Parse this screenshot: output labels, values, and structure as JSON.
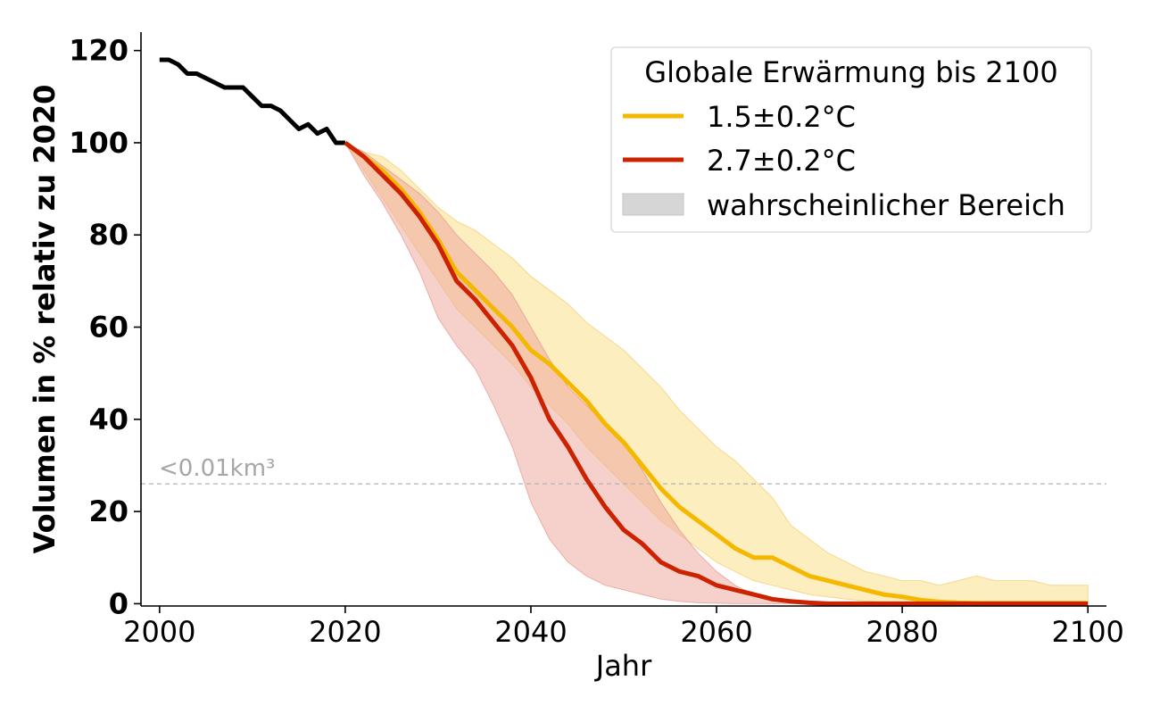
{
  "chart_data": {
    "type": "line",
    "xlabel": "Jahr",
    "ylabel": "Volumen in % relativ zu 2020",
    "xlim": [
      1998,
      2102
    ],
    "ylim": [
      -0.5,
      124
    ],
    "x_ticks": [
      2000,
      2020,
      2040,
      2060,
      2080,
      2100
    ],
    "y_ticks": [
      0,
      20,
      40,
      60,
      80,
      100,
      120
    ],
    "grid": false,
    "legend": {
      "title": "Globale Erwärmung bis 2100",
      "position": "top-right",
      "entries": [
        "1.5±0.2°C",
        "2.7±0.2°C",
        "wahrscheinlicher Bereich"
      ]
    },
    "colors": {
      "historical": "#000000",
      "s15": "#f5b800",
      "s15_band": "#fdeebf",
      "s27": "#cc2200",
      "s27_band": "#eeaaa0",
      "band_legend": "#d6d6d6",
      "threshold": "#b3b3b3"
    },
    "threshold": {
      "value": 26,
      "label": "<0.01km³"
    },
    "historical": {
      "x": [
        2000,
        2001,
        2002,
        2003,
        2004,
        2005,
        2006,
        2007,
        2008,
        2009,
        2010,
        2011,
        2012,
        2013,
        2014,
        2015,
        2016,
        2017,
        2018,
        2019,
        2020
      ],
      "y": [
        118,
        118,
        117,
        115,
        115,
        114,
        113,
        112,
        112,
        112,
        110,
        108,
        108,
        107,
        105,
        103,
        104,
        102,
        103,
        100,
        100
      ]
    },
    "series": [
      {
        "name": "1.5±0.2°C",
        "x": [
          2020,
          2022,
          2024,
          2026,
          2028,
          2030,
          2032,
          2034,
          2036,
          2038,
          2040,
          2042,
          2044,
          2046,
          2048,
          2050,
          2052,
          2054,
          2056,
          2058,
          2060,
          2062,
          2064,
          2066,
          2068,
          2070,
          2072,
          2074,
          2076,
          2078,
          2080,
          2082,
          2084,
          2086,
          2088,
          2090,
          2092,
          2094,
          2096,
          2098,
          2100
        ],
        "y": [
          100,
          97,
          94,
          90,
          85,
          79,
          72,
          68,
          64,
          60,
          55,
          52,
          48,
          44,
          39,
          35,
          30,
          25,
          21,
          18,
          15,
          12,
          10,
          10,
          8,
          6,
          5,
          4,
          3,
          2,
          1.5,
          0.8,
          0.4,
          0.2,
          0.1,
          0.1,
          0.1,
          0.1,
          0.1,
          0.1,
          0.1
        ],
        "lower": [
          100,
          94,
          88,
          82,
          76,
          70,
          64,
          60,
          56,
          52,
          47,
          43,
          39,
          34,
          30,
          26,
          22,
          18,
          15,
          12,
          9,
          7,
          5,
          4,
          3,
          2,
          1.5,
          1,
          0.6,
          0.3,
          0.2,
          0.1,
          0,
          0,
          0,
          0,
          0,
          0,
          0,
          0,
          0
        ],
        "upper": [
          100,
          98,
          97,
          94,
          90,
          86,
          83,
          81,
          78,
          75,
          71,
          68,
          65,
          61,
          58,
          55,
          51,
          47,
          42,
          38,
          34,
          31,
          27,
          23,
          17,
          14,
          11,
          9,
          7,
          6,
          5,
          5,
          4,
          5,
          6,
          5,
          5,
          5,
          4,
          4,
          4
        ]
      },
      {
        "name": "2.7±0.2°C",
        "x": [
          2020,
          2022,
          2024,
          2026,
          2028,
          2030,
          2032,
          2034,
          2036,
          2038,
          2040,
          2042,
          2044,
          2046,
          2048,
          2050,
          2052,
          2054,
          2056,
          2058,
          2060,
          2062,
          2064,
          2066,
          2068,
          2070,
          2072,
          2074,
          2076,
          2078,
          2080,
          2082,
          2084,
          2086,
          2088,
          2090,
          2092,
          2094,
          2096,
          2098,
          2100
        ],
        "y": [
          100,
          97,
          93,
          89,
          84,
          78,
          70,
          66,
          61,
          56,
          49,
          40,
          34,
          27,
          21,
          16,
          13,
          9,
          7,
          6,
          4,
          3,
          2,
          1,
          0.5,
          0.2,
          0,
          0,
          0,
          0,
          0,
          0,
          0,
          0,
          0,
          0,
          0,
          0,
          0,
          0,
          0
        ],
        "lower": [
          100,
          93,
          87,
          80,
          72,
          62,
          56,
          51,
          43,
          34,
          22,
          14,
          9,
          6,
          4,
          3,
          2,
          1,
          0.5,
          0.2,
          0.1,
          0,
          0,
          0,
          0,
          0,
          0,
          0,
          0,
          0,
          0,
          0,
          0,
          0,
          0,
          0,
          0,
          0,
          0,
          0,
          0
        ],
        "upper": [
          100,
          98,
          95,
          92,
          89,
          85,
          80,
          76,
          72,
          67,
          60,
          53,
          47,
          43,
          39,
          35,
          29,
          22,
          16,
          11,
          7,
          4,
          2,
          1,
          0.5,
          0.2,
          0,
          0,
          0,
          0,
          0,
          0,
          0,
          0,
          0,
          0,
          0,
          0,
          0,
          0,
          0
        ]
      }
    ]
  }
}
